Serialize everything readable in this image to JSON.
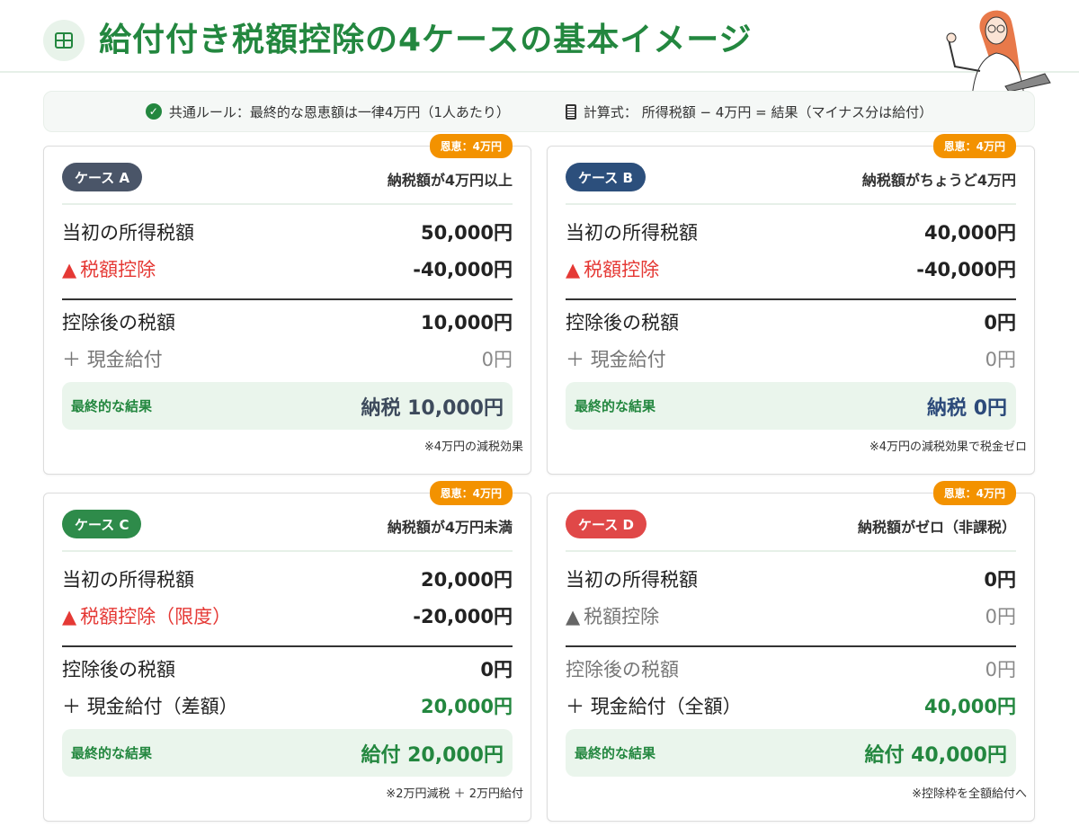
{
  "header": {
    "title": "給付付き税額控除の4ケースの基本イメージ",
    "icon": "table-icon"
  },
  "rules": {
    "common": "共通ルール：最終的な恩恵額は一律4万円（1人あたり）",
    "formula": "計算式： 所得税額 − 4万円 = 結果（マイナス分は給付）"
  },
  "colors": {
    "green": "#23873f",
    "orange": "#f39200",
    "red": "#e53935"
  },
  "labels": {
    "initial_tax": "当初の所得税額",
    "after_tax": "控除後の税額",
    "final_result": "最終的な結果"
  },
  "cases": [
    {
      "badge": "ケース A",
      "badge_color": "#4a5568",
      "benefit": "恩恵：4万円",
      "condition": "納税額が4万円以上",
      "initial": "50,000円",
      "deduction_label": "税額控除",
      "deduction": "-40,000円",
      "after": "10,000円",
      "cash_label": "現金給付",
      "cash": "0円",
      "result": "納税 10,000円",
      "result_color": "#3d4a5c",
      "note": "※4万円の減税効果"
    },
    {
      "badge": "ケース B",
      "badge_color": "#2c4f7c",
      "benefit": "恩恵：4万円",
      "condition": "納税額がちょうど4万円",
      "initial": "40,000円",
      "deduction_label": "税額控除",
      "deduction": "-40,000円",
      "after": "0円",
      "cash_label": "現金給付",
      "cash": "0円",
      "result": "納税 0円",
      "result_color": "#2c4a7a",
      "note": "※4万円の減税効果で税金ゼロ"
    },
    {
      "badge": "ケース C",
      "badge_color": "#2e8b4a",
      "benefit": "恩恵：4万円",
      "condition": "納税額が4万円未満",
      "initial": "20,000円",
      "deduction_label": "税額控除（限度）",
      "deduction": "-20,000円",
      "after": "0円",
      "cash_label": "現金給付（差額）",
      "cash": "20,000円",
      "result": "給付 20,000円",
      "result_color": "#23873f",
      "note": "※2万円減税 ＋ 2万円給付"
    },
    {
      "badge": "ケース D",
      "badge_color": "#e04848",
      "benefit": "恩恵：4万円",
      "condition": "納税額がゼロ（非課税）",
      "initial": "0円",
      "deduction_label": "税額控除",
      "deduction": "0円",
      "after": "0円",
      "cash_label": "現金給付（全額）",
      "cash": "40,000円",
      "result": "給付 40,000円",
      "result_color": "#23873f",
      "note": "※控除枠を全額給付へ"
    }
  ]
}
